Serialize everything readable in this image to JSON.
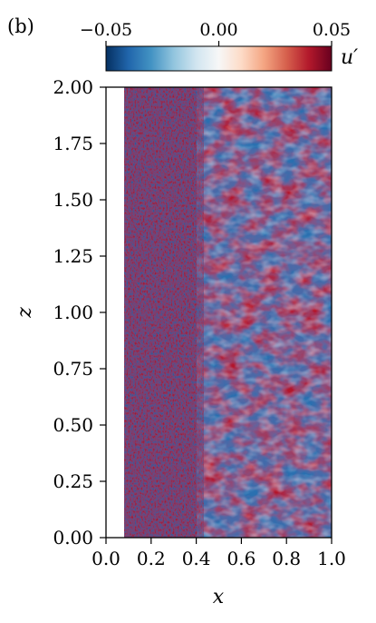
{
  "chart_data": {
    "type": "heatmap",
    "panel_label": "(b)",
    "xlabel": "x",
    "ylabel": "z",
    "xlim": [
      0.0,
      1.0
    ],
    "ylim": [
      0.0,
      2.0
    ],
    "x_ticks": [
      "0.0",
      "0.2",
      "0.4",
      "0.6",
      "0.8",
      "1.0"
    ],
    "y_ticks": [
      "0.00",
      "0.25",
      "0.50",
      "0.75",
      "1.00",
      "1.25",
      "1.50",
      "1.75",
      "2.00"
    ],
    "colorbar": {
      "label": "u′",
      "range": [
        -0.05,
        0.05
      ],
      "ticks": [
        "−0.05",
        "0.00",
        "0.05"
      ],
      "colormap": "RdBu_r",
      "colors": [
        "#053061",
        "#2166ac",
        "#4393c3",
        "#92c5de",
        "#d1e5f0",
        "#f7f7f7",
        "#fddbc7",
        "#f4a582",
        "#d6604d",
        "#b2182b",
        "#67001f"
      ],
      "position": "top"
    },
    "regions": [
      {
        "x_range": [
          0.0,
          0.1
        ],
        "description": "blank strip near x=0"
      },
      {
        "x_range": [
          0.1,
          0.4
        ],
        "description": "fine-scale high-frequency fluctuations"
      },
      {
        "x_range": [
          0.4,
          1.0
        ],
        "description": "large-scale red/blue patches"
      }
    ]
  }
}
